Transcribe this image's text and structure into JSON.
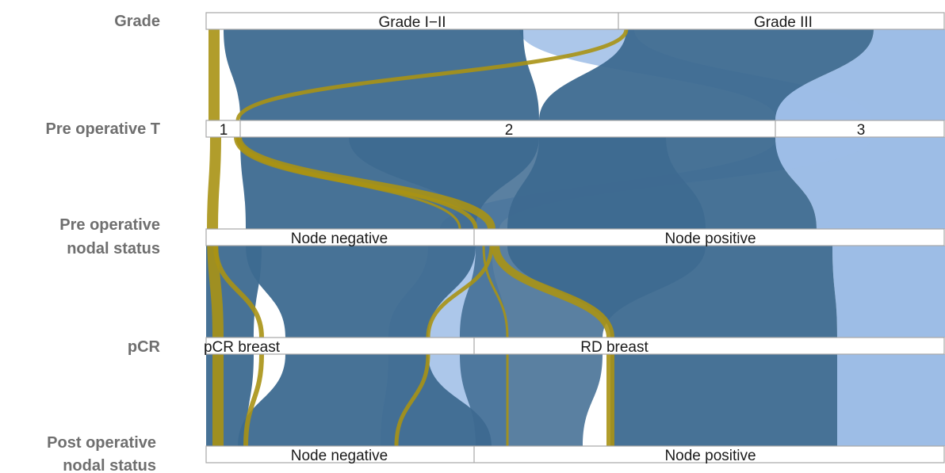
{
  "axes": [
    {
      "key": "grade",
      "label_lines": [
        "Grade"
      ],
      "categories": [
        "Grade I−II",
        "Grade III"
      ]
    },
    {
      "key": "pre_t",
      "label_lines": [
        "Pre operative T"
      ],
      "categories": [
        "1",
        "2",
        "3"
      ]
    },
    {
      "key": "pre_nodal",
      "label_lines": [
        "Pre operative",
        "nodal status"
      ],
      "categories": [
        "Node negative",
        "Node positive"
      ]
    },
    {
      "key": "pcr",
      "label_lines": [
        "pCR"
      ],
      "categories": [
        "pCR breast",
        "RD breast"
      ]
    },
    {
      "key": "post_nodal",
      "label_lines": [
        "Post operative",
        "nodal status"
      ],
      "categories": [
        "Node negative",
        "Node positive"
      ]
    }
  ],
  "colors": {
    "dark_blue": "#3d6a90",
    "light_blue": "#9dbde6",
    "gold": "#a89214",
    "axis_label": "#6f6f6f",
    "bar_border": "#a8a8a8"
  },
  "groups": [
    {
      "id": "gold",
      "color": "gold"
    },
    {
      "id": "dark",
      "color": "dark_blue"
    },
    {
      "id": "light",
      "color": "light_blue"
    }
  ]
}
